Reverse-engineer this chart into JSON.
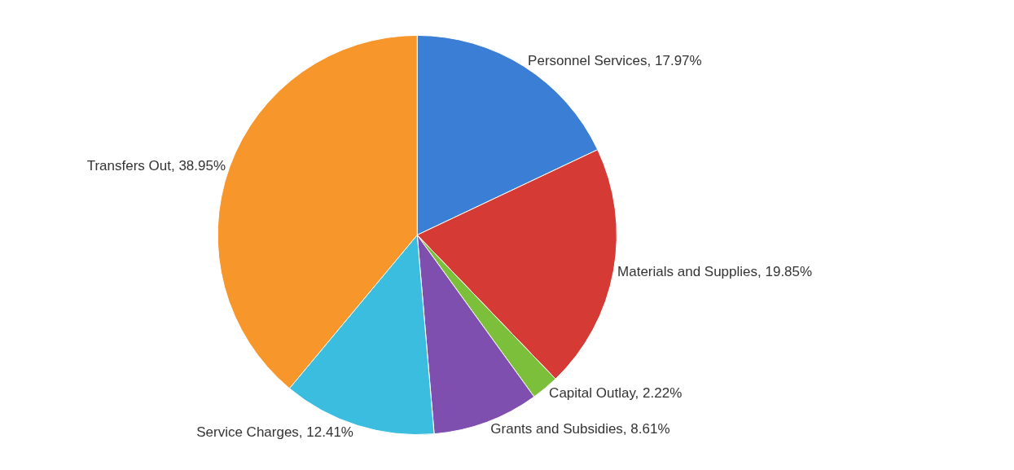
{
  "chart_data": {
    "type": "pie",
    "categories": [
      "Personnel Services",
      "Materials and Supplies",
      "Capital Outlay",
      "Grants and Subsidies",
      "Service Charges",
      "Transfers Out"
    ],
    "values": [
      17.97,
      19.85,
      2.22,
      8.61,
      12.41,
      38.95
    ],
    "value_labels": [
      "17.97%",
      "19.85%",
      "2.22%",
      "8.61%",
      "12.41%",
      "38.95%"
    ],
    "colors": [
      "#3a7fd5",
      "#d63a35",
      "#7cbf3a",
      "#7f4fb0",
      "#3bbde0",
      "#f7962a"
    ],
    "data_labels": true,
    "legend": false
  }
}
